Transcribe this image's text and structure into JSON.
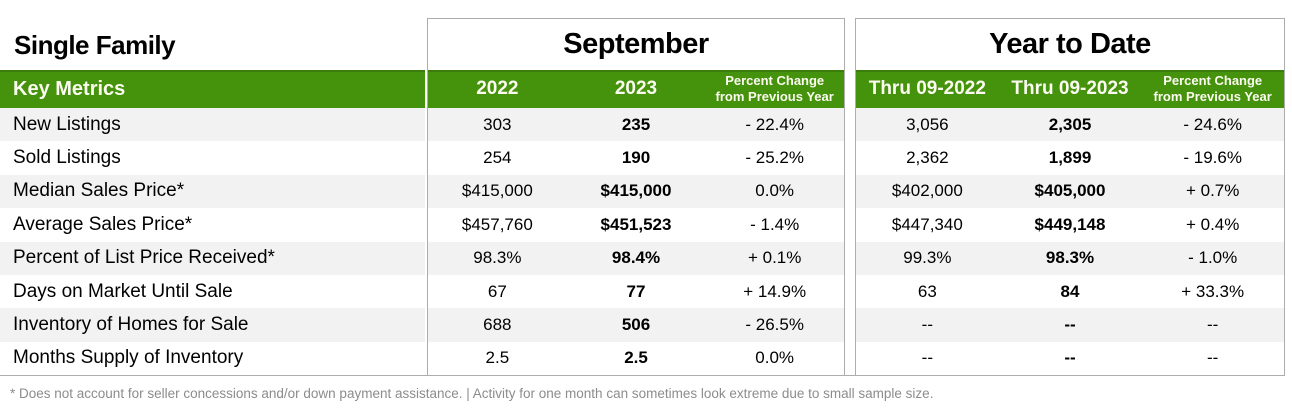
{
  "title": "Single Family",
  "table": {
    "label_header": "Key Metrics",
    "sections": [
      {
        "title": "September",
        "col1": "2022",
        "col2": "2023",
        "col3_line1": "Percent Change",
        "col3_line2": "from Previous Year"
      },
      {
        "title": "Year to Date",
        "col1": "Thru 09-2022",
        "col2": "Thru 09-2023",
        "col3_line1": "Percent Change",
        "col3_line2": "from Previous Year"
      }
    ],
    "rows": [
      {
        "label": "New Listings",
        "sep": [
          "303",
          "235",
          "- 22.4%"
        ],
        "ytd": [
          "3,056",
          "2,305",
          "- 24.6%"
        ]
      },
      {
        "label": "Sold Listings",
        "sep": [
          "254",
          "190",
          "- 25.2%"
        ],
        "ytd": [
          "2,362",
          "1,899",
          "- 19.6%"
        ]
      },
      {
        "label": "Median Sales Price*",
        "sep": [
          "$415,000",
          "$415,000",
          "0.0%"
        ],
        "ytd": [
          "$402,000",
          "$405,000",
          "+ 0.7%"
        ]
      },
      {
        "label": "Average Sales Price*",
        "sep": [
          "$457,760",
          "$451,523",
          "- 1.4%"
        ],
        "ytd": [
          "$447,340",
          "$449,148",
          "+ 0.4%"
        ]
      },
      {
        "label": "Percent of List Price Received*",
        "sep": [
          "98.3%",
          "98.4%",
          "+ 0.1%"
        ],
        "ytd": [
          "99.3%",
          "98.3%",
          "- 1.0%"
        ]
      },
      {
        "label": "Days on Market Until Sale",
        "sep": [
          "67",
          "77",
          "+ 14.9%"
        ],
        "ytd": [
          "63",
          "84",
          "+ 33.3%"
        ]
      },
      {
        "label": "Inventory of Homes for Sale",
        "sep": [
          "688",
          "506",
          "- 26.5%"
        ],
        "ytd": [
          "--",
          "--",
          "--"
        ]
      },
      {
        "label": "Months Supply of Inventory",
        "sep": [
          "2.5",
          "2.5",
          "0.0%"
        ],
        "ytd": [
          "--",
          "--",
          "--"
        ]
      }
    ]
  },
  "footnote": "* Does not account for seller concessions and/or down payment assistance.  |  Activity for one month can sometimes look extreme due to small sample size.",
  "colors": {
    "header_green": "#45920C",
    "stripe": "#F2F2F2",
    "border": "#ADADAD",
    "header_text": "#FBFBF0",
    "footnote_text": "#8C8C8C"
  }
}
